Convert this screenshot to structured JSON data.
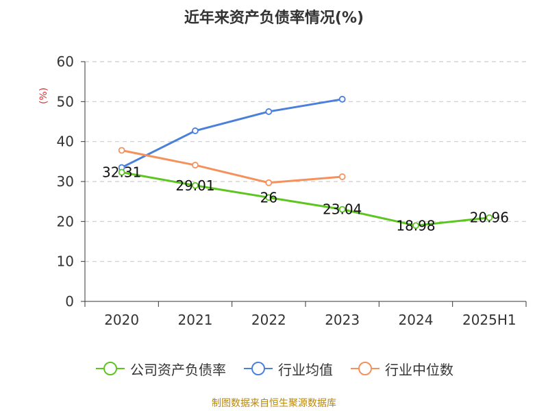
{
  "chart_data": {
    "type": "line",
    "title": "近年来资产负债率情况(%)",
    "xlabel": "",
    "ylabel": "(%)",
    "categories": [
      "2020",
      "2021",
      "2022",
      "2023",
      "2024",
      "2025H1"
    ],
    "ylim": [
      0,
      60
    ],
    "yticks": [
      0,
      10,
      20,
      30,
      40,
      50,
      60
    ],
    "grid": true,
    "legend_position": "bottom",
    "series": [
      {
        "name": "公司资产负债率",
        "color": "#5cc51f",
        "values": [
          32.31,
          29.01,
          26,
          23.04,
          18.98,
          20.96
        ],
        "labels": [
          "32.31",
          "29.01",
          "26",
          "23.04",
          "18.98",
          "20.96"
        ]
      },
      {
        "name": "行业均值",
        "color": "#4a7fdc",
        "values": [
          33.5,
          42.7,
          47.5,
          50.6,
          null,
          null
        ]
      },
      {
        "name": "行业中位数",
        "color": "#f4915c",
        "values": [
          37.8,
          34.1,
          29.7,
          31.2,
          null,
          null
        ]
      }
    ]
  },
  "footer": {
    "source": "制图数据来自恒生聚源数据库"
  }
}
